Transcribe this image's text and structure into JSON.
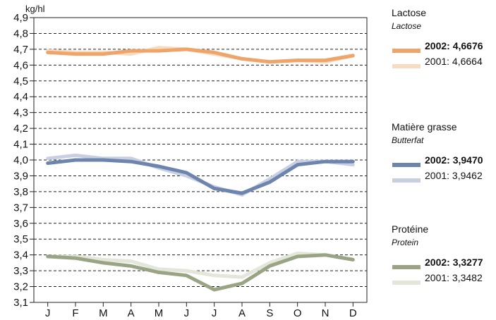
{
  "chart_data": {
    "type": "line",
    "ylabel": "kg/hl",
    "xlabel": "",
    "categories": [
      "J",
      "F",
      "M",
      "A",
      "M",
      "J",
      "J",
      "A",
      "S",
      "O",
      "N",
      "D"
    ],
    "ylim": [
      3.1,
      4.9
    ],
    "yticks": [
      "3,1",
      "3,2",
      "3,3",
      "3,4",
      "3,5",
      "3,6",
      "3,7",
      "3,8",
      "3,9",
      "4,0",
      "4,1",
      "4,2",
      "4,3",
      "4,4",
      "4,5",
      "4,6",
      "4,7",
      "4,8",
      "4,9"
    ],
    "grid": "horizontal-dashed",
    "groups": [
      {
        "title": "Lactose",
        "subtitle": "Lactose",
        "series": [
          {
            "label": "2002: 4,6676",
            "color": "#efa46a",
            "values": [
              4.68,
              4.67,
              4.67,
              4.69,
              4.69,
              4.7,
              4.68,
              4.64,
              4.62,
              4.63,
              4.63,
              4.66
            ]
          },
          {
            "label": "2001: 4,6664",
            "color": "#f7dcc1",
            "values": [
              4.69,
              4.68,
              4.68,
              4.67,
              4.71,
              4.7,
              4.67,
              4.64,
              4.62,
              4.63,
              4.62,
              4.66
            ]
          }
        ]
      },
      {
        "title": "Matière grasse",
        "subtitle": "Butterfat",
        "series": [
          {
            "label": "2002: 3,9470",
            "color": "#6d84ad",
            "values": [
              3.98,
              4.0,
              4.0,
              3.99,
              3.96,
              3.92,
              3.82,
              3.79,
              3.86,
              3.97,
              3.99,
              3.99
            ]
          },
          {
            "label": "2001: 3,9462",
            "color": "#c8cfe2",
            "values": [
              4.01,
              4.03,
              4.01,
              4.01,
              3.95,
              3.9,
              3.83,
              3.78,
              3.88,
              3.99,
              3.99,
              3.97
            ]
          }
        ]
      },
      {
        "title": "Protéine",
        "subtitle": "Protein",
        "series": [
          {
            "label": "2002: 3,3277",
            "color": "#98a483",
            "values": [
              3.39,
              3.38,
              3.35,
              3.33,
              3.29,
              3.27,
              3.18,
              3.22,
              3.33,
              3.39,
              3.4,
              3.37
            ]
          },
          {
            "label": "2001: 3,3482",
            "color": "#e3e6d8",
            "values": [
              3.39,
              3.39,
              3.37,
              3.36,
              3.31,
              3.3,
              3.27,
              3.26,
              3.35,
              3.41,
              3.4,
              3.37
            ]
          }
        ]
      }
    ]
  }
}
